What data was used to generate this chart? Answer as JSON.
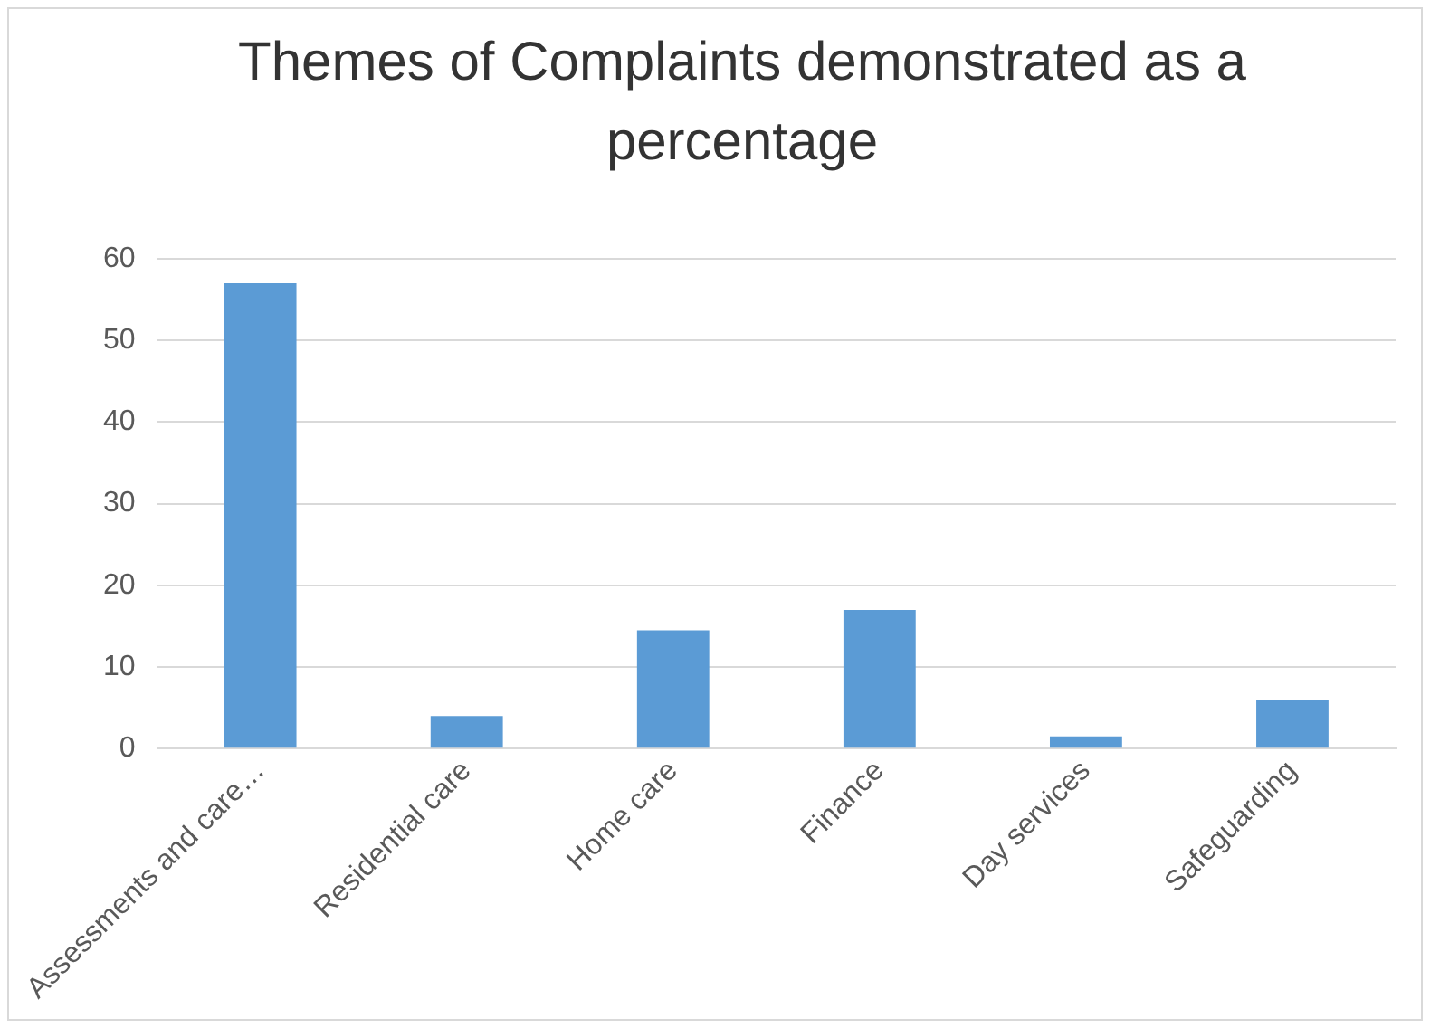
{
  "chart_data": {
    "type": "bar",
    "title": "Themes of Complaints demonstrated as a percentage",
    "categories": [
      "Assessments and care…",
      "Residential care",
      "Home care",
      "Finance",
      "Day services",
      "Safeguarding"
    ],
    "values": [
      57,
      4,
      14.5,
      17,
      1.5,
      6
    ],
    "color": "#5b9bd5",
    "ylim": [
      0,
      60
    ],
    "yticks": [
      0,
      10,
      20,
      30,
      40,
      50,
      60
    ],
    "grid": "y"
  }
}
